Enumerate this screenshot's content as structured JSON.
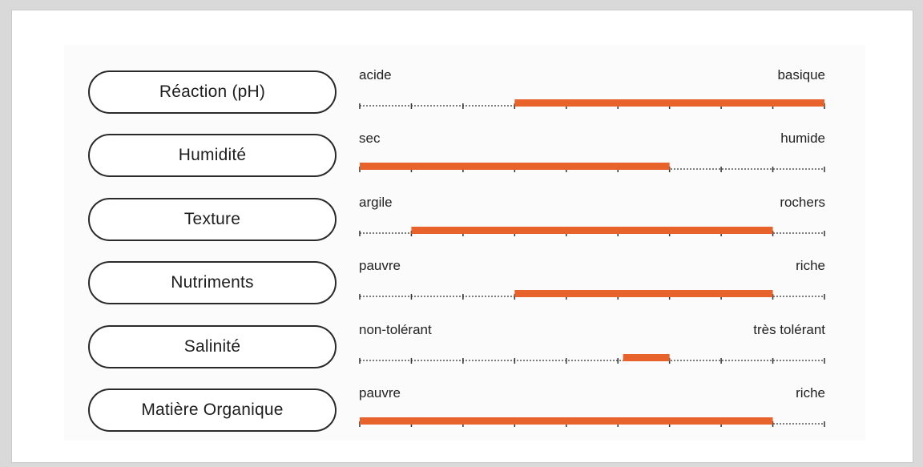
{
  "chart_data": {
    "type": "range-bar",
    "scale": {
      "min": 0,
      "max": 9,
      "ticks": 10
    },
    "bar_color": "#e8632b",
    "rows": [
      {
        "label": "Réaction (pH)",
        "left": "acide",
        "right": "basique",
        "range": [
          3,
          9
        ]
      },
      {
        "label": "Humidité",
        "left": "sec",
        "right": "humide",
        "range": [
          0,
          6
        ]
      },
      {
        "label": "Texture",
        "left": "argile",
        "right": "rochers",
        "range": [
          1,
          8
        ]
      },
      {
        "label": "Nutriments",
        "left": "pauvre",
        "right": "riche",
        "range": [
          3,
          8
        ]
      },
      {
        "label": "Salinité",
        "left": "non-tolérant",
        "right": "très tolérant",
        "range": [
          5.1,
          6
        ]
      },
      {
        "label": "Matière Organique",
        "left": "pauvre",
        "right": "riche",
        "range": [
          0,
          8
        ]
      }
    ]
  }
}
